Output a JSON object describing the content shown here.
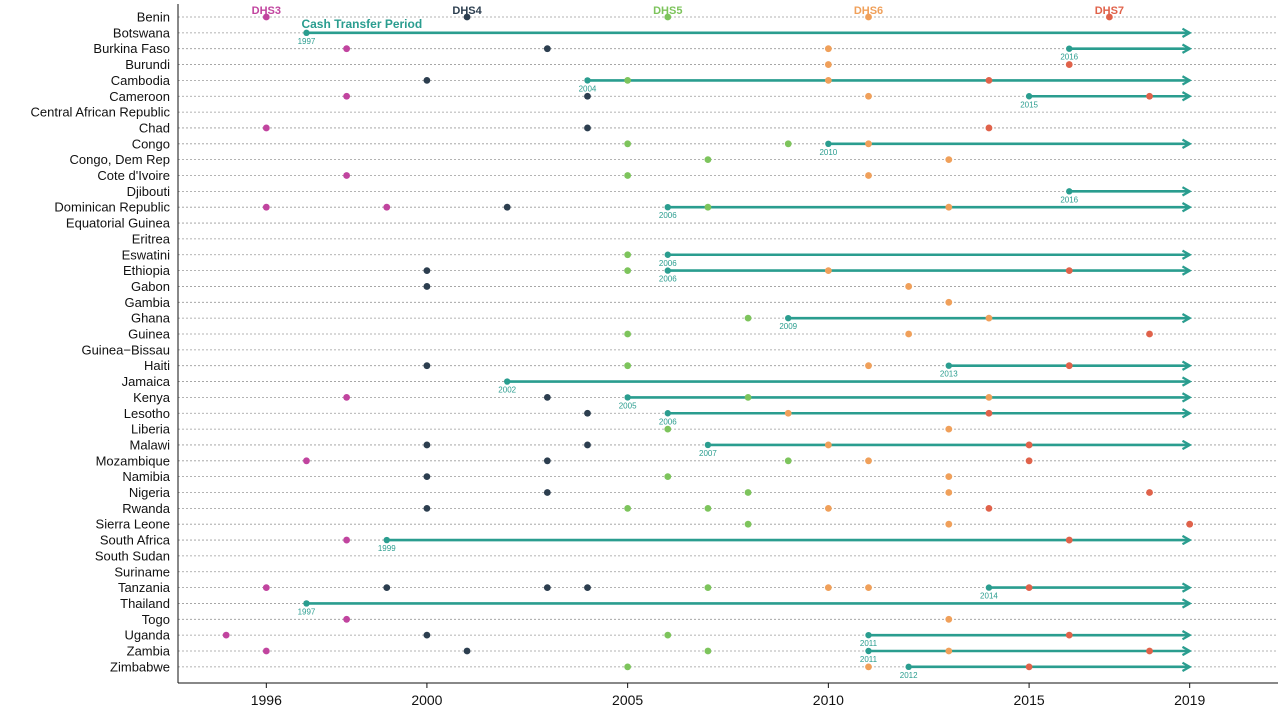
{
  "chart_data": {
    "type": "timeline-dot",
    "x_ticks": [
      1996,
      2000,
      2005,
      2010,
      2015,
      2019
    ],
    "xlim": [
      1993.8,
      2021.2
    ],
    "grid": "dotted horizontal per country",
    "colors": {
      "DHS3": "#c1449f",
      "DHS4": "#2c3e4f",
      "DHS5": "#7dc45c",
      "DHS6": "#f0a05a",
      "DHS7": "#e0624a",
      "cash_transfer": "#2a9d8f"
    },
    "survey_header": [
      {
        "label": "DHS3",
        "phase": "DHS3",
        "year": 1996
      },
      {
        "label": "DHS4",
        "phase": "DHS4",
        "year": 2001
      },
      {
        "label": "DHS5",
        "phase": "DHS5",
        "year": 2006
      },
      {
        "label": "DHS6",
        "phase": "DHS6",
        "year": 2011
      },
      {
        "label": "DHS7",
        "phase": "DHS7",
        "year": 2017
      }
    ],
    "cash_transfer_label": "Cash Transfer Period",
    "cash_transfer_end": 2019,
    "countries": [
      {
        "name": "Benin",
        "surveys": [
          [
            1996,
            "DHS3"
          ],
          [
            2001,
            "DHS4"
          ],
          [
            2006,
            "DHS5"
          ],
          [
            2011,
            "DHS6"
          ],
          [
            2017,
            "DHS7"
          ]
        ],
        "ct_start": null
      },
      {
        "name": "Botswana",
        "surveys": [],
        "ct_start": 1997
      },
      {
        "name": "Burkina Faso",
        "surveys": [
          [
            1998,
            "DHS3"
          ],
          [
            2003,
            "DHS4"
          ],
          [
            2010,
            "DHS6"
          ]
        ],
        "ct_start": 2016
      },
      {
        "name": "Burundi",
        "surveys": [
          [
            2010,
            "DHS6"
          ],
          [
            2016,
            "DHS7"
          ]
        ],
        "ct_start": null
      },
      {
        "name": "Cambodia",
        "surveys": [
          [
            2000,
            "DHS4"
          ],
          [
            2005,
            "DHS5"
          ],
          [
            2010,
            "DHS6"
          ],
          [
            2014,
            "DHS7"
          ]
        ],
        "ct_start": 2004
      },
      {
        "name": "Cameroon",
        "surveys": [
          [
            1998,
            "DHS3"
          ],
          [
            2004,
            "DHS4"
          ],
          [
            2011,
            "DHS6"
          ],
          [
            2018,
            "DHS7"
          ]
        ],
        "ct_start": 2015
      },
      {
        "name": "Central African Republic",
        "surveys": [],
        "ct_start": null
      },
      {
        "name": "Chad",
        "surveys": [
          [
            1996,
            "DHS3"
          ],
          [
            2004,
            "DHS4"
          ],
          [
            2014,
            "DHS7"
          ]
        ],
        "ct_start": null
      },
      {
        "name": "Congo",
        "surveys": [
          [
            2005,
            "DHS5"
          ],
          [
            2009,
            "DHS5"
          ],
          [
            2011,
            "DHS6"
          ]
        ],
        "ct_start": 2010
      },
      {
        "name": "Congo, Dem Rep",
        "surveys": [
          [
            2007,
            "DHS5"
          ],
          [
            2013,
            "DHS6"
          ]
        ],
        "ct_start": null
      },
      {
        "name": "Cote d'Ivoire",
        "surveys": [
          [
            1998,
            "DHS3"
          ],
          [
            2005,
            "DHS5"
          ],
          [
            2011,
            "DHS6"
          ]
        ],
        "ct_start": null
      },
      {
        "name": "Djibouti",
        "surveys": [],
        "ct_start": 2016
      },
      {
        "name": "Dominican Republic",
        "surveys": [
          [
            1996,
            "DHS3"
          ],
          [
            1999,
            "DHS3"
          ],
          [
            2002,
            "DHS4"
          ],
          [
            2007,
            "DHS5"
          ],
          [
            2013,
            "DHS6"
          ]
        ],
        "ct_start": 2006
      },
      {
        "name": "Equatorial Guinea",
        "surveys": [],
        "ct_start": null
      },
      {
        "name": "Eritrea",
        "surveys": [],
        "ct_start": null
      },
      {
        "name": "Eswatini",
        "surveys": [
          [
            2005,
            "DHS5"
          ]
        ],
        "ct_start": 2006
      },
      {
        "name": "Ethiopia",
        "surveys": [
          [
            2000,
            "DHS4"
          ],
          [
            2005,
            "DHS5"
          ],
          [
            2010,
            "DHS6"
          ],
          [
            2016,
            "DHS7"
          ]
        ],
        "ct_start": 2006
      },
      {
        "name": "Gabon",
        "surveys": [
          [
            2000,
            "DHS4"
          ],
          [
            2012,
            "DHS6"
          ]
        ],
        "ct_start": null
      },
      {
        "name": "Gambia",
        "surveys": [
          [
            2013,
            "DHS6"
          ]
        ],
        "ct_start": null
      },
      {
        "name": "Ghana",
        "surveys": [
          [
            2008,
            "DHS5"
          ],
          [
            2014,
            "DHS6"
          ]
        ],
        "ct_start": 2009
      },
      {
        "name": "Guinea",
        "surveys": [
          [
            2005,
            "DHS5"
          ],
          [
            2012,
            "DHS6"
          ],
          [
            2018,
            "DHS7"
          ]
        ],
        "ct_start": null
      },
      {
        "name": "Guinea−Bissau",
        "surveys": [],
        "ct_start": null
      },
      {
        "name": "Haiti",
        "surveys": [
          [
            2000,
            "DHS4"
          ],
          [
            2005,
            "DHS5"
          ],
          [
            2011,
            "DHS6"
          ],
          [
            2016,
            "DHS7"
          ]
        ],
        "ct_start": 2013
      },
      {
        "name": "Jamaica",
        "surveys": [],
        "ct_start": 2002
      },
      {
        "name": "Kenya",
        "surveys": [
          [
            1998,
            "DHS3"
          ],
          [
            2003,
            "DHS4"
          ],
          [
            2008,
            "DHS5"
          ],
          [
            2014,
            "DHS6"
          ]
        ],
        "ct_start": 2005
      },
      {
        "name": "Lesotho",
        "surveys": [
          [
            2004,
            "DHS4"
          ],
          [
            2009,
            "DHS6"
          ],
          [
            2014,
            "DHS7"
          ]
        ],
        "ct_start": 2006
      },
      {
        "name": "Liberia",
        "surveys": [
          [
            2006,
            "DHS5"
          ],
          [
            2013,
            "DHS6"
          ]
        ],
        "ct_start": null
      },
      {
        "name": "Malawi",
        "surveys": [
          [
            2000,
            "DHS4"
          ],
          [
            2004,
            "DHS4"
          ],
          [
            2010,
            "DHS6"
          ],
          [
            2015,
            "DHS7"
          ]
        ],
        "ct_start": 2007
      },
      {
        "name": "Mozambique",
        "surveys": [
          [
            1997,
            "DHS3"
          ],
          [
            2003,
            "DHS4"
          ],
          [
            2009,
            "DHS5"
          ],
          [
            2011,
            "DHS6"
          ],
          [
            2015,
            "DHS7"
          ]
        ],
        "ct_start": null
      },
      {
        "name": "Namibia",
        "surveys": [
          [
            2000,
            "DHS4"
          ],
          [
            2006,
            "DHS5"
          ],
          [
            2013,
            "DHS6"
          ]
        ],
        "ct_start": null
      },
      {
        "name": "Nigeria",
        "surveys": [
          [
            2003,
            "DHS4"
          ],
          [
            2008,
            "DHS5"
          ],
          [
            2013,
            "DHS6"
          ],
          [
            2018,
            "DHS7"
          ]
        ],
        "ct_start": null
      },
      {
        "name": "Rwanda",
        "surveys": [
          [
            2000,
            "DHS4"
          ],
          [
            2005,
            "DHS5"
          ],
          [
            2007,
            "DHS5"
          ],
          [
            2010,
            "DHS6"
          ],
          [
            2014,
            "DHS7"
          ]
        ],
        "ct_start": null
      },
      {
        "name": "Sierra Leone",
        "surveys": [
          [
            2008,
            "DHS5"
          ],
          [
            2013,
            "DHS6"
          ],
          [
            2019,
            "DHS7"
          ]
        ],
        "ct_start": null
      },
      {
        "name": "South Africa",
        "surveys": [
          [
            1998,
            "DHS3"
          ],
          [
            2016,
            "DHS7"
          ]
        ],
        "ct_start": 1999
      },
      {
        "name": "South Sudan",
        "surveys": [],
        "ct_start": null
      },
      {
        "name": "Suriname",
        "surveys": [],
        "ct_start": null
      },
      {
        "name": "Tanzania",
        "surveys": [
          [
            1996,
            "DHS3"
          ],
          [
            1999,
            "DHS4"
          ],
          [
            2003,
            "DHS4"
          ],
          [
            2004,
            "DHS4"
          ],
          [
            2007,
            "DHS5"
          ],
          [
            2010,
            "DHS6"
          ],
          [
            2011,
            "DHS6"
          ],
          [
            2015,
            "DHS7"
          ]
        ],
        "ct_start": 2014
      },
      {
        "name": "Thailand",
        "surveys": [],
        "ct_start": 1997
      },
      {
        "name": "Togo",
        "surveys": [
          [
            1998,
            "DHS3"
          ],
          [
            2013,
            "DHS6"
          ]
        ],
        "ct_start": null
      },
      {
        "name": "Uganda",
        "surveys": [
          [
            1995,
            "DHS3"
          ],
          [
            2000,
            "DHS4"
          ],
          [
            2006,
            "DHS5"
          ],
          [
            2016,
            "DHS7"
          ]
        ],
        "ct_start": 2011
      },
      {
        "name": "Zambia",
        "surveys": [
          [
            1996,
            "DHS3"
          ],
          [
            2001,
            "DHS4"
          ],
          [
            2007,
            "DHS5"
          ],
          [
            2013,
            "DHS6"
          ],
          [
            2018,
            "DHS7"
          ]
        ],
        "ct_start": 2011
      },
      {
        "name": "Zimbabwe",
        "surveys": [
          [
            2005,
            "DHS5"
          ],
          [
            2011,
            "DHS6"
          ],
          [
            2015,
            "DHS7"
          ]
        ],
        "ct_start": 2012
      }
    ]
  }
}
